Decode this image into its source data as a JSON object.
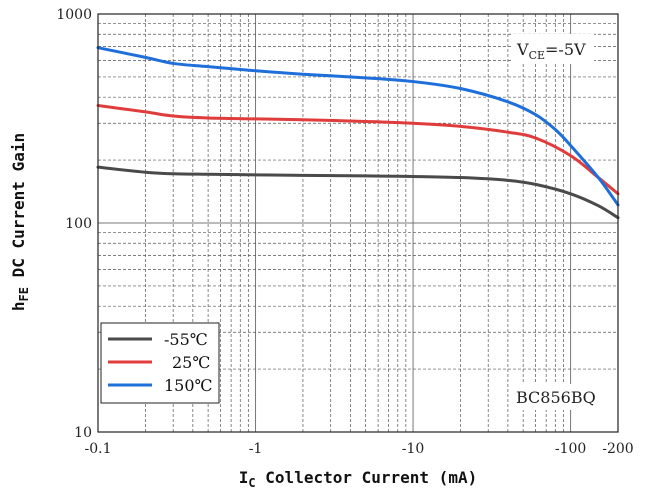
{
  "chart_data": {
    "type": "line",
    "x_scale": "log",
    "y_scale": "log",
    "xlim": [
      0.1,
      200
    ],
    "ylim": [
      10,
      1000
    ],
    "grid": true,
    "legend_position": "bottom-left",
    "xlabel": {
      "main": "I",
      "sub": "C",
      "rest": " Collector Current (mA)"
    },
    "ylabel": {
      "main": "h",
      "sub": "FE",
      "rest": " DC Current Gain"
    },
    "x_ticks": [
      {
        "value": 0.1,
        "label": "-0.1"
      },
      {
        "value": 1,
        "label": "-1"
      },
      {
        "value": 10,
        "label": "-10"
      },
      {
        "value": 100,
        "label": "-100"
      },
      {
        "value": 200,
        "label": "-200"
      }
    ],
    "y_ticks": [
      {
        "value": 10,
        "label": "10"
      },
      {
        "value": 100,
        "label": "100"
      },
      {
        "value": 1000,
        "label": "1000"
      }
    ],
    "annotations": {
      "condition_main": "V",
      "condition_sub": "CE",
      "condition_rest": "=-5V",
      "part_number": "BC856BQ"
    },
    "series": [
      {
        "name": "-55℃",
        "color": "#4a4a4a",
        "x": [
          0.1,
          0.2,
          0.3,
          0.5,
          1,
          2,
          5,
          10,
          20,
          40,
          60,
          100,
          150,
          200
        ],
        "y": [
          185,
          175,
          172,
          171,
          170,
          169,
          168,
          167,
          165,
          160,
          153,
          138,
          121,
          106
        ]
      },
      {
        "name": "25℃",
        "color": "#e03c3c",
        "x": [
          0.1,
          0.2,
          0.3,
          0.5,
          1,
          2,
          5,
          10,
          20,
          40,
          60,
          100,
          150,
          200
        ],
        "y": [
          365,
          340,
          325,
          318,
          315,
          312,
          306,
          300,
          290,
          272,
          255,
          210,
          165,
          138
        ]
      },
      {
        "name": "150℃",
        "color": "#1e6fd9",
        "x": [
          0.1,
          0.2,
          0.3,
          0.5,
          1,
          2,
          5,
          10,
          20,
          40,
          60,
          80,
          100,
          150,
          200
        ],
        "y": [
          690,
          620,
          580,
          560,
          535,
          515,
          495,
          475,
          440,
          380,
          330,
          280,
          235,
          165,
          122
        ]
      }
    ]
  }
}
